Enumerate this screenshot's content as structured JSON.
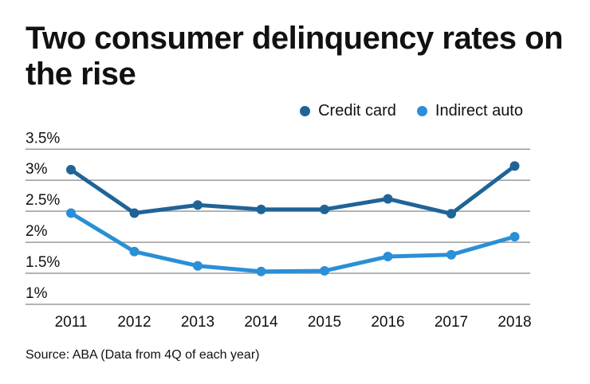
{
  "chart_data": {
    "type": "line",
    "title": "Two consumer delinquency rates on the rise",
    "categories": [
      "2011",
      "2012",
      "2013",
      "2014",
      "2015",
      "2016",
      "2017",
      "2018"
    ],
    "y_ticks": [
      "1%",
      "1.5%",
      "2%",
      "2.5%",
      "3%",
      "3.5%"
    ],
    "y_tick_values": [
      1,
      1.5,
      2,
      2.5,
      3,
      3.5
    ],
    "ylim": [
      1,
      3.5
    ],
    "grid": true,
    "legend_position": "top-right",
    "series": [
      {
        "name": "Credit card",
        "color": "#1f6497",
        "values": [
          3.17,
          2.47,
          2.6,
          2.53,
          2.53,
          2.7,
          2.46,
          3.23
        ]
      },
      {
        "name": "Indirect auto",
        "color": "#2a8fd6",
        "values": [
          2.47,
          1.85,
          1.62,
          1.53,
          1.54,
          1.77,
          1.8,
          2.09
        ]
      }
    ],
    "source": "Source: ABA (Data from 4Q of each year)"
  }
}
